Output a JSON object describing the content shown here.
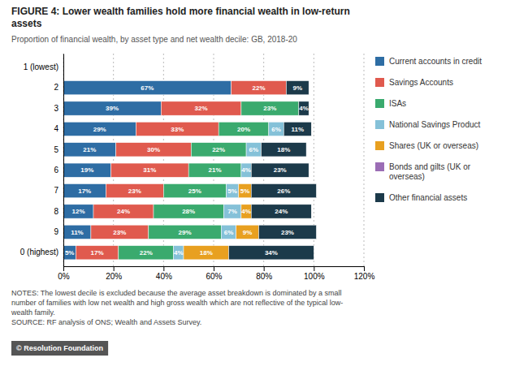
{
  "chart_data": {
    "type": "bar",
    "orientation": "horizontal",
    "stacked": true,
    "title": "FIGURE 4: Lower wealth families hold more financial wealth in low-return\nassets",
    "subtitle": "Proportion of financial wealth, by asset type and net wealth decile: GB, 2018-20",
    "annotations": [
      "NOTES: The lowest decile is excluded because the average asset breakdown is dominated by a small\nnumber of families with low net wealth and high gross wealth which are not reflective of the typical low-\nwealth family.\nSOURCE: RF analysis of ONS; Wealth and Assets Survey.",
      "© Resolution Foundation"
    ],
    "categories": [
      "1 (lowest)",
      "2",
      "3",
      "4",
      "5",
      "6",
      "7",
      "8",
      "9",
      "0 (highest)"
    ],
    "series": [
      {
        "name": "Current accounts in credit",
        "color": "#2e6da4",
        "values": [
          0,
          67,
          39,
          29,
          21,
          19,
          17,
          12,
          11,
          5
        ],
        "value_labels": [
          null,
          "67%",
          "39%",
          "29%",
          "21%",
          "19%",
          "17%",
          "12%",
          "11%",
          "5%"
        ]
      },
      {
        "name": "Savings Accounts",
        "color": "#e05a4e",
        "values": [
          0,
          22,
          32,
          33,
          30,
          31,
          23,
          24,
          23,
          17
        ],
        "value_labels": [
          null,
          "22%",
          "32%",
          "33%",
          "30%",
          "31%",
          "23%",
          "24%",
          "23%",
          "17%"
        ]
      },
      {
        "name": "ISAs",
        "color": "#3aaa6e",
        "values": [
          0,
          0,
          23,
          20,
          22,
          21,
          25,
          28,
          29,
          22
        ],
        "value_labels": [
          null,
          null,
          "23%",
          "20%",
          "22%",
          "21%",
          "25%",
          "28%",
          "29%",
          "22%"
        ]
      },
      {
        "name": "National Savings Product",
        "color": "#85c1d8",
        "values": [
          0,
          0,
          0,
          6,
          6,
          4,
          5,
          7,
          6,
          4
        ],
        "value_labels": [
          null,
          null,
          null,
          "6%",
          "6%",
          "4%",
          "5%",
          "7%",
          "6%",
          "4%"
        ]
      },
      {
        "name": "Shares (UK or overseas)",
        "color": "#e8a020",
        "values": [
          0,
          0,
          0,
          0,
          0,
          0,
          5,
          4,
          9,
          18
        ],
        "value_labels": [
          null,
          null,
          null,
          null,
          null,
          null,
          "5%",
          "4%",
          "9%",
          "18%"
        ]
      },
      {
        "name": "Bonds and gilts (UK or\noverseas)",
        "color": "#9b6db5",
        "values": [
          0,
          0,
          0,
          0,
          0,
          0,
          0,
          0,
          0,
          0
        ],
        "value_labels": [
          null,
          null,
          null,
          null,
          null,
          null,
          null,
          null,
          null,
          null
        ]
      },
      {
        "name": "Other financial assets",
        "color": "#1c3a4a",
        "values": [
          0,
          9,
          4,
          11,
          18,
          23,
          26,
          24,
          23,
          34
        ],
        "value_labels": [
          null,
          "9%",
          "4%",
          "11%",
          "18%",
          "23%",
          "26%",
          "24%",
          "23%",
          "34%"
        ]
      }
    ],
    "xlim": [
      0,
      120
    ],
    "xticks": [
      {
        "value": 0,
        "label": "0%"
      },
      {
        "value": 20,
        "label": "20%"
      },
      {
        "value": 40,
        "label": "40%"
      },
      {
        "value": 60,
        "label": "60%"
      },
      {
        "value": 80,
        "label": "80%"
      },
      {
        "value": 100,
        "label": "100%"
      },
      {
        "value": 120,
        "label": "120%"
      }
    ],
    "grid": true,
    "data_labels": true,
    "legend": "right"
  }
}
